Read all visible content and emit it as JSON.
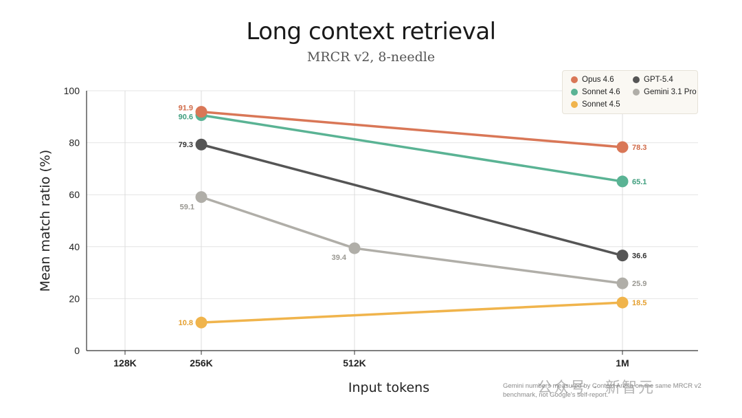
{
  "chart_data": {
    "type": "line",
    "title": "Long context retrieval",
    "subtitle": "MRCR v2, 8-needle",
    "xlabel": "Input tokens",
    "ylabel": "Mean match ratio (%)",
    "categories": [
      "128K",
      "256K",
      "512K",
      "1M"
    ],
    "yticks": [
      "0",
      "20",
      "40",
      "60",
      "80",
      "100"
    ],
    "ylim": [
      0,
      100
    ],
    "grid": true,
    "legend_position": "top-right",
    "series": [
      {
        "name": "Opus 4.6",
        "color": "#d97757",
        "points": [
          [
            1,
            91.9
          ],
          [
            3,
            78.3
          ]
        ],
        "labels": [
          "91.9",
          "78.3"
        ]
      },
      {
        "name": "Sonnet 4.6",
        "color": "#5ab394",
        "points": [
          [
            1,
            90.6
          ],
          [
            3,
            65.1
          ]
        ],
        "labels": [
          "90.6",
          "65.1"
        ]
      },
      {
        "name": "Sonnet 4.5",
        "color": "#f0b44c",
        "points": [
          [
            1,
            10.8
          ],
          [
            3,
            18.5
          ]
        ],
        "labels": [
          "10.8",
          "18.5"
        ]
      },
      {
        "name": "GPT-5.4",
        "color": "#555555",
        "points": [
          [
            1,
            79.3
          ],
          [
            3,
            36.6
          ]
        ],
        "labels": [
          "79.3",
          "36.6"
        ]
      },
      {
        "name": "Gemini 3.1 Pro",
        "color": "#b0aea8",
        "points": [
          [
            1,
            59.1
          ],
          [
            2,
            39.4
          ],
          [
            3,
            25.9
          ]
        ],
        "labels": [
          "59.1",
          "39.4",
          "25.9"
        ]
      }
    ],
    "footnote": "Gemini numbers measured by Context Arena on the same MRCR v2 benchmark, not Google's self-report."
  },
  "watermark": "公众号 · 新智元"
}
